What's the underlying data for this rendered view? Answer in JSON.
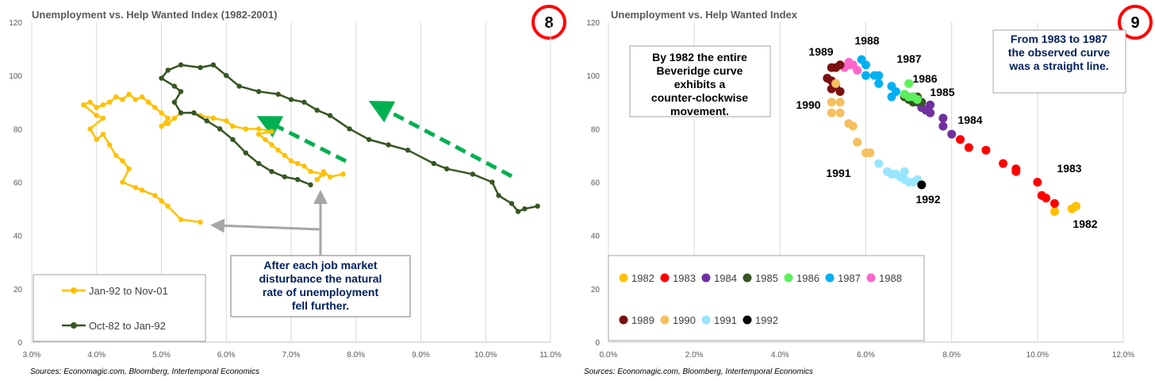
{
  "chart_data": [
    {
      "type": "line",
      "title": "Unemployment vs. Help Wanted Index (1982-2001)",
      "badge": "8",
      "x_ticks": [
        "3.0%",
        "4.0%",
        "5.0%",
        "6.0%",
        "7.0%",
        "8.0%",
        "9.0%",
        "10.0%",
        "11.0%"
      ],
      "y_ticks": [
        "0",
        "20",
        "40",
        "60",
        "80",
        "100",
        "120"
      ],
      "xlim": [
        3.0,
        11.0
      ],
      "ylim": [
        0,
        120
      ],
      "grid": "vertical",
      "legend_position": "bottom-left",
      "series": [
        {
          "name": "Jan-92 to Nov-01",
          "color": "#FFC000",
          "points": [
            [
              7.8,
              63
            ],
            [
              7.6,
              62
            ],
            [
              7.5,
              64
            ],
            [
              7.4,
              61
            ],
            [
              7.5,
              63
            ],
            [
              7.3,
              64
            ],
            [
              7.2,
              66
            ],
            [
              7.1,
              67
            ],
            [
              7.0,
              68
            ],
            [
              6.9,
              70
            ],
            [
              6.8,
              72
            ],
            [
              6.7,
              74
            ],
            [
              6.6,
              76
            ],
            [
              6.5,
              78
            ],
            [
              6.7,
              79
            ],
            [
              6.5,
              80
            ],
            [
              6.3,
              80
            ],
            [
              6.1,
              81
            ],
            [
              6.0,
              83
            ],
            [
              5.8,
              84
            ],
            [
              5.6,
              85
            ],
            [
              5.5,
              86
            ],
            [
              5.3,
              86
            ],
            [
              5.2,
              84
            ],
            [
              5.1,
              82
            ],
            [
              5.0,
              81
            ],
            [
              5.1,
              84
            ],
            [
              5.0,
              86
            ],
            [
              4.9,
              88
            ],
            [
              4.8,
              90
            ],
            [
              4.7,
              92
            ],
            [
              4.6,
              91
            ],
            [
              4.5,
              93
            ],
            [
              4.4,
              91
            ],
            [
              4.3,
              92
            ],
            [
              4.2,
              90
            ],
            [
              4.1,
              89
            ],
            [
              4.0,
              88
            ],
            [
              3.9,
              90
            ],
            [
              3.8,
              89
            ],
            [
              4.0,
              85
            ],
            [
              4.1,
              84
            ],
            [
              3.9,
              80
            ],
            [
              4.0,
              76
            ],
            [
              4.1,
              78
            ],
            [
              4.2,
              74
            ],
            [
              4.3,
              70
            ],
            [
              4.4,
              68
            ],
            [
              4.5,
              65
            ],
            [
              4.4,
              60
            ],
            [
              4.6,
              58
            ],
            [
              4.7,
              57
            ],
            [
              4.9,
              55
            ],
            [
              5.0,
              53
            ],
            [
              5.1,
              51
            ],
            [
              5.3,
              46
            ],
            [
              5.6,
              45
            ]
          ]
        },
        {
          "name": "Oct-82 to Jan-92",
          "color": "#375623",
          "points": [
            [
              10.8,
              51
            ],
            [
              10.6,
              50
            ],
            [
              10.5,
              49
            ],
            [
              10.4,
              52
            ],
            [
              10.2,
              55
            ],
            [
              10.1,
              60
            ],
            [
              9.8,
              63
            ],
            [
              9.4,
              65
            ],
            [
              9.2,
              67
            ],
            [
              8.8,
              72
            ],
            [
              8.5,
              74
            ],
            [
              8.2,
              76
            ],
            [
              7.9,
              80
            ],
            [
              7.6,
              85
            ],
            [
              7.4,
              87
            ],
            [
              7.2,
              90
            ],
            [
              7.0,
              91
            ],
            [
              6.8,
              93
            ],
            [
              6.5,
              94
            ],
            [
              6.2,
              96
            ],
            [
              6.0,
              100
            ],
            [
              5.8,
              104
            ],
            [
              5.6,
              103
            ],
            [
              5.3,
              104
            ],
            [
              5.1,
              102
            ],
            [
              5.0,
              99
            ],
            [
              5.2,
              96
            ],
            [
              5.3,
              94
            ],
            [
              5.2,
              90
            ],
            [
              5.3,
              86
            ],
            [
              5.5,
              86
            ],
            [
              5.7,
              83
            ],
            [
              5.9,
              80
            ],
            [
              6.1,
              76
            ],
            [
              6.3,
              71
            ],
            [
              6.5,
              67
            ],
            [
              6.7,
              64
            ],
            [
              6.9,
              62
            ],
            [
              7.1,
              61
            ],
            [
              7.3,
              59
            ]
          ]
        }
      ],
      "arrow_label": "After each job market disturbance the natural rate of unemployment fell further.",
      "source": "Sources: Economagic.com, Bloomberg, Intertemporal Economics"
    },
    {
      "type": "scatter",
      "title": "Unemployment vs. Help Wanted Index",
      "badge": "9",
      "x_ticks": [
        "0.0%",
        "2.0%",
        "4.0%",
        "6.0%",
        "8.0%",
        "10.0%",
        "12.0%"
      ],
      "y_ticks": [
        "0",
        "20",
        "40",
        "60",
        "80",
        "100",
        "120"
      ],
      "xlim": [
        0,
        12
      ],
      "ylim": [
        0,
        120
      ],
      "grid": "vertical",
      "legend_position": "bottom-left",
      "series": [
        {
          "name": "1982",
          "color": "#FFC000",
          "points": [
            [
              10.4,
              49
            ],
            [
              10.8,
              50
            ],
            [
              10.9,
              51
            ]
          ]
        },
        {
          "name": "1983",
          "color": "#FF0000",
          "points": [
            [
              10.4,
              52
            ],
            [
              10.2,
              54
            ],
            [
              10.1,
              55
            ],
            [
              10.0,
              60
            ],
            [
              9.5,
              64
            ],
            [
              9.5,
              65
            ],
            [
              9.2,
              67
            ],
            [
              8.8,
              72
            ],
            [
              8.4,
              73
            ],
            [
              8.2,
              76
            ]
          ]
        },
        {
          "name": "1984",
          "color": "#7030A0",
          "points": [
            [
              8.0,
              78
            ],
            [
              7.8,
              81
            ],
            [
              7.8,
              84
            ],
            [
              7.5,
              86
            ],
            [
              7.4,
              87
            ],
            [
              7.5,
              89
            ],
            [
              7.3,
              88
            ],
            [
              7.2,
              90
            ]
          ]
        },
        {
          "name": "1985",
          "color": "#375623",
          "points": [
            [
              7.3,
              90
            ],
            [
              7.2,
              91
            ],
            [
              7.1,
              90
            ],
            [
              7.0,
              91
            ],
            [
              7.1,
              92
            ],
            [
              7.2,
              92
            ],
            [
              6.9,
              92
            ]
          ]
        },
        {
          "name": "1986",
          "color": "#5CF05C",
          "points": [
            [
              7.0,
              97
            ],
            [
              6.9,
              93
            ],
            [
              7.0,
              92
            ],
            [
              7.1,
              92
            ],
            [
              7.2,
              91
            ]
          ]
        },
        {
          "name": "1987",
          "color": "#00B0F0",
          "points": [
            [
              6.7,
              94
            ],
            [
              6.6,
              92
            ],
            [
              6.6,
              96
            ],
            [
              6.3,
              97
            ],
            [
              6.3,
              100
            ],
            [
              6.2,
              100
            ],
            [
              6.0,
              100
            ],
            [
              6.0,
              104
            ],
            [
              5.9,
              106
            ]
          ]
        },
        {
          "name": "1988",
          "color": "#FF66CC",
          "points": [
            [
              5.8,
              102
            ],
            [
              5.7,
              104
            ],
            [
              5.6,
              104
            ],
            [
              5.5,
              103
            ],
            [
              5.6,
              105
            ]
          ]
        },
        {
          "name": "1989",
          "color": "#7B1010",
          "points": [
            [
              5.4,
              104
            ],
            [
              5.2,
              103
            ],
            [
              5.3,
              103
            ],
            [
              5.1,
              99
            ],
            [
              5.2,
              98
            ],
            [
              5.3,
              96
            ],
            [
              5.2,
              95
            ],
            [
              5.4,
              94
            ]
          ]
        },
        {
          "name": "1990",
          "color": "#F5C060",
          "points": [
            [
              5.3,
              97
            ],
            [
              5.4,
              90
            ],
            [
              5.2,
              90
            ],
            [
              5.2,
              86
            ],
            [
              5.4,
              86
            ],
            [
              5.6,
              82
            ],
            [
              5.7,
              81
            ],
            [
              5.8,
              75
            ],
            [
              6.0,
              71
            ],
            [
              6.1,
              71
            ]
          ]
        },
        {
          "name": "1991",
          "color": "#99E6FF",
          "points": [
            [
              6.3,
              67
            ],
            [
              6.5,
              64
            ],
            [
              6.6,
              63
            ],
            [
              6.7,
              63
            ],
            [
              6.8,
              62
            ],
            [
              6.9,
              61
            ],
            [
              7.0,
              60
            ],
            [
              7.1,
              60
            ],
            [
              6.9,
              64
            ],
            [
              7.2,
              61
            ]
          ]
        },
        {
          "name": "1992",
          "color": "#000000",
          "points": [
            [
              7.3,
              59
            ]
          ]
        }
      ],
      "year_labels": [
        "1982",
        "1983",
        "1984",
        "1985",
        "1986",
        "1987",
        "1988",
        "1989",
        "1990",
        "1991",
        "1992"
      ],
      "note_left": "By 1982 the entire Beveridge curve exhibits a counter-clockwise movement.",
      "note_right": "From 1983 to 1987 the observed curve was a straight line.",
      "source": "Sources: Economagic.com, Bloomberg, Intertemporal Economics"
    }
  ]
}
